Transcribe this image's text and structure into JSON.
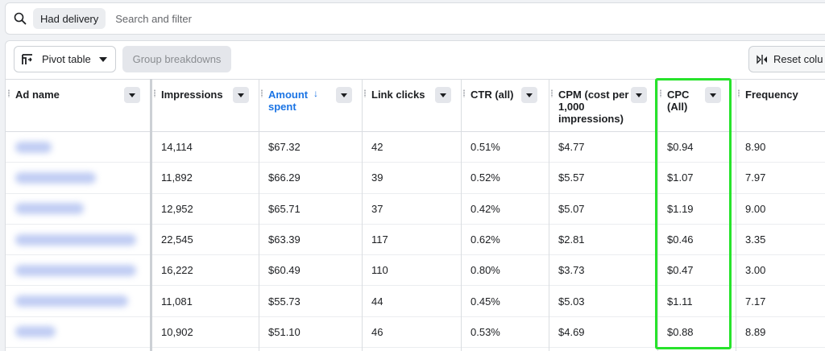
{
  "filter": {
    "chip_label": "Had delivery",
    "placeholder": "Search and filter"
  },
  "toolbar": {
    "pivot_label": "Pivot table",
    "group_label": "Group breakdowns",
    "reset_label": "Reset colu"
  },
  "columns": [
    {
      "label": "Ad name"
    },
    {
      "label": "Impressions"
    },
    {
      "label": "Amount\nspent",
      "sorted": true,
      "sort_direction": "descending"
    },
    {
      "label": "Link clicks"
    },
    {
      "label": "CTR (all)"
    },
    {
      "label": "CPM (cost per\n1,000\nimpressions)"
    },
    {
      "label": "CPC\n(All)",
      "highlighted": true
    },
    {
      "label": "Frequency"
    }
  ],
  "rows": [
    {
      "impressions": "14,114",
      "amount": "$67.32",
      "clicks": "42",
      "ctr": "0.51%",
      "cpm": "$4.77",
      "cpc": "$0.94",
      "freq": "8.90"
    },
    {
      "impressions": "11,892",
      "amount": "$66.29",
      "clicks": "39",
      "ctr": "0.52%",
      "cpm": "$5.57",
      "cpc": "$1.07",
      "freq": "7.97"
    },
    {
      "impressions": "12,952",
      "amount": "$65.71",
      "clicks": "37",
      "ctr": "0.42%",
      "cpm": "$5.07",
      "cpc": "$1.19",
      "freq": "9.00"
    },
    {
      "impressions": "22,545",
      "amount": "$63.39",
      "clicks": "117",
      "ctr": "0.62%",
      "cpm": "$2.81",
      "cpc": "$0.46",
      "freq": "3.35"
    },
    {
      "impressions": "16,222",
      "amount": "$60.49",
      "clicks": "110",
      "ctr": "0.80%",
      "cpm": "$3.73",
      "cpc": "$0.47",
      "freq": "3.00"
    },
    {
      "impressions": "11,081",
      "amount": "$55.73",
      "clicks": "44",
      "ctr": "0.45%",
      "cpm": "$5.03",
      "cpc": "$1.11",
      "freq": "7.17"
    },
    {
      "impressions": "10,902",
      "amount": "$51.10",
      "clicks": "46",
      "ctr": "0.53%",
      "cpm": "$4.69",
      "cpc": "$0.88",
      "freq": "8.89"
    }
  ],
  "colors": {
    "accent": "#1b74e4",
    "highlight": "#27e32b",
    "blurred_name": "#b9c7f2"
  },
  "icons": {
    "search": "search-icon",
    "pivot": "pivot-table-icon",
    "reset": "reset-columns-icon",
    "sort": "arrow-down-icon",
    "dropdown": "chevron-down-icon"
  }
}
